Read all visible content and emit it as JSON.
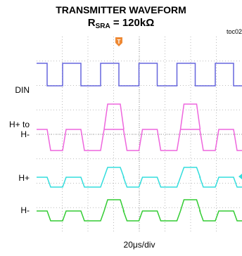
{
  "header": {
    "title": "TRANSMITTER WAVEFORM",
    "subtitle_main": "R",
    "subtitle_sub": "SRA",
    "subtitle_rest": " = 120kΩ",
    "tag": "toc02"
  },
  "colors": {
    "din": "#6666dd",
    "hplus_to_hminus": "#ee66dd",
    "hplus": "#33dddd",
    "hminus": "#33cc33",
    "grid": "#bbbbbb",
    "trigger": "#ee8833"
  },
  "chart_data": {
    "type": "line",
    "xlabel": "20μs/div",
    "divisions": 8,
    "grid": true,
    "channels": [
      {
        "name": "DIN",
        "label_lines": [
          "DIN"
        ],
        "color_key": "din"
      },
      {
        "name": "H+ to H-",
        "label_lines": [
          "H+ to",
          "H-"
        ],
        "color_key": "hplus_to_hminus"
      },
      {
        "name": "H+",
        "label_lines": [
          "H+"
        ],
        "color_key": "hplus"
      },
      {
        "name": "H-",
        "label_lines": [
          "H-"
        ],
        "color_key": "hminus"
      }
    ],
    "markers": {
      "trigger": "T",
      "ground_marker": "◂"
    }
  }
}
